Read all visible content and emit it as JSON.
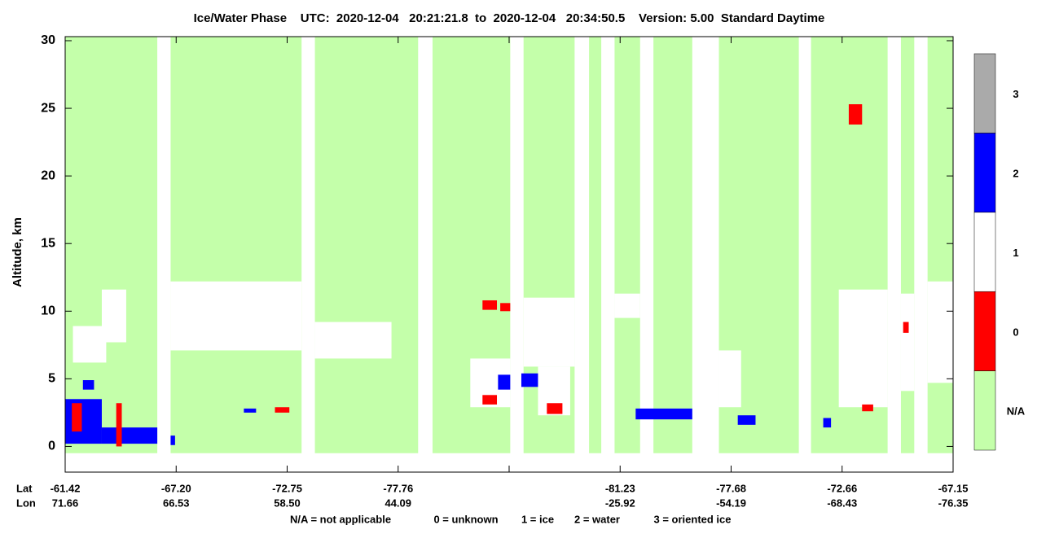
{
  "chart_data": {
    "type": "curtain",
    "title": "Ice/Water Phase    UTC:  2020-12-04   20:21:21.8  to  2020-12-04   20:34:50.5    Version: 5.00  Standard Daytime",
    "y_label": "Altitude, km",
    "ylim": [
      -1.9,
      30.3
    ],
    "yticks": [
      0,
      5,
      10,
      15,
      20,
      25,
      30
    ],
    "row_labels": [
      "Lat",
      "Lon"
    ],
    "lat": [
      "-61.42",
      "-67.20",
      "-72.75",
      "-77.76",
      null,
      "-81.23",
      "-77.68",
      "-72.66",
      "-67.15"
    ],
    "lon": [
      "71.66",
      "66.53",
      "58.50",
      "44.09",
      null,
      "-25.92",
      "-54.19",
      "-68.43",
      "-76.35"
    ],
    "xlim": [
      0,
      8
    ],
    "data_alt": [
      -0.5,
      30.3
    ],
    "swaths": [
      [
        0,
        0.83
      ],
      [
        0.95,
        2.13
      ],
      [
        2.25,
        3.18
      ],
      [
        3.31,
        4.01
      ],
      [
        4.13,
        4.59
      ],
      [
        4.72,
        4.83
      ],
      [
        4.95,
        5.18
      ],
      [
        5.3,
        5.65
      ],
      [
        5.89,
        6.61
      ],
      [
        6.72,
        7.41
      ],
      [
        7.53,
        7.65
      ],
      [
        7.77,
        8
      ]
    ],
    "features": [
      {
        "class": "1",
        "x": [
          0.33,
          0.55
        ],
        "alt": [
          7.7,
          11.6
        ]
      },
      {
        "class": "1",
        "x": [
          0.07,
          0.37
        ],
        "alt": [
          6.2,
          8.9
        ]
      },
      {
        "class": "1",
        "x": [
          0.95,
          2.13
        ],
        "alt": [
          7.1,
          12.2
        ]
      },
      {
        "class": "1",
        "x": [
          2.25,
          2.94
        ],
        "alt": [
          6.5,
          9.2
        ]
      },
      {
        "class": "1",
        "x": [
          4.13,
          4.59
        ],
        "alt": [
          5.9,
          11
        ]
      },
      {
        "class": "1",
        "x": [
          4.95,
          5.18
        ],
        "alt": [
          9.5,
          11.3
        ]
      },
      {
        "class": "1",
        "x": [
          5.89,
          6.09
        ],
        "alt": [
          2.9,
          7.1
        ]
      },
      {
        "class": "1",
        "x": [
          6.97,
          7.41
        ],
        "alt": [
          2.9,
          11.6
        ]
      },
      {
        "class": "1",
        "x": [
          7.53,
          7.65
        ],
        "alt": [
          4.1,
          11.3
        ]
      },
      {
        "class": "1",
        "x": [
          7.77,
          8
        ],
        "alt": [
          4.7,
          12.2
        ]
      },
      {
        "class": "1",
        "x": [
          3.65,
          4.01
        ],
        "alt": [
          2.9,
          6.5
        ]
      },
      {
        "class": "1",
        "x": [
          4.26,
          4.55
        ],
        "alt": [
          2.3,
          5.9
        ]
      },
      {
        "class": "2",
        "x": [
          0,
          0.33
        ],
        "alt": [
          0.2,
          3.5
        ]
      },
      {
        "class": "2",
        "x": [
          0.33,
          0.83
        ],
        "alt": [
          0.2,
          1.4
        ]
      },
      {
        "class": "2",
        "x": [
          0.16,
          0.26
        ],
        "alt": [
          4.2,
          4.9
        ]
      },
      {
        "class": "2",
        "x": [
          0.95,
          0.99
        ],
        "alt": [
          0.1,
          0.8
        ]
      },
      {
        "class": "2",
        "x": [
          1.61,
          1.72
        ],
        "alt": [
          2.5,
          2.8
        ]
      },
      {
        "class": "2",
        "x": [
          4.11,
          4.26
        ],
        "alt": [
          4.4,
          5.4
        ]
      },
      {
        "class": "2",
        "x": [
          5.14,
          5.65
        ],
        "alt": [
          2,
          2.8
        ]
      },
      {
        "class": "2",
        "x": [
          6.06,
          6.22
        ],
        "alt": [
          1.6,
          2.3
        ]
      },
      {
        "class": "2",
        "x": [
          6.83,
          6.9
        ],
        "alt": [
          1.4,
          2.1
        ]
      },
      {
        "class": "2",
        "x": [
          3.9,
          4.01
        ],
        "alt": [
          4.2,
          5.3
        ]
      },
      {
        "class": "0",
        "x": [
          3.76,
          3.89
        ],
        "alt": [
          10.1,
          10.8
        ]
      },
      {
        "class": "0",
        "x": [
          3.92,
          4.01
        ],
        "alt": [
          10,
          10.6
        ]
      },
      {
        "class": "0",
        "x": [
          7.06,
          7.18
        ],
        "alt": [
          23.8,
          25.3
        ]
      },
      {
        "class": "0",
        "x": [
          3.76,
          3.89
        ],
        "alt": [
          3.1,
          3.8
        ]
      },
      {
        "class": "0",
        "x": [
          4.34,
          4.48
        ],
        "alt": [
          2.4,
          3.2
        ]
      },
      {
        "class": "0",
        "x": [
          1.89,
          2.02
        ],
        "alt": [
          2.5,
          2.9
        ]
      },
      {
        "class": "0",
        "x": [
          0.46,
          0.51
        ],
        "alt": [
          0,
          3.2
        ]
      },
      {
        "class": "0",
        "x": [
          0.06,
          0.15
        ],
        "alt": [
          1.1,
          3.2
        ]
      },
      {
        "class": "0",
        "x": [
          7.18,
          7.28
        ],
        "alt": [
          2.6,
          3.1
        ]
      },
      {
        "class": "0",
        "x": [
          7.55,
          7.6
        ],
        "alt": [
          8.4,
          9.2
        ]
      }
    ],
    "colorbar": {
      "labels": [
        "N/A",
        "0",
        "1",
        "2",
        "3"
      ],
      "colors": [
        "#c4ffaa",
        "#ff0000",
        "#ffffff",
        "#0000ff",
        "#aaaaaa"
      ]
    },
    "footer": [
      "N/A = not applicable",
      "0 = unknown",
      "1 = ice",
      "2 = water",
      "3 = oriented ice"
    ]
  }
}
